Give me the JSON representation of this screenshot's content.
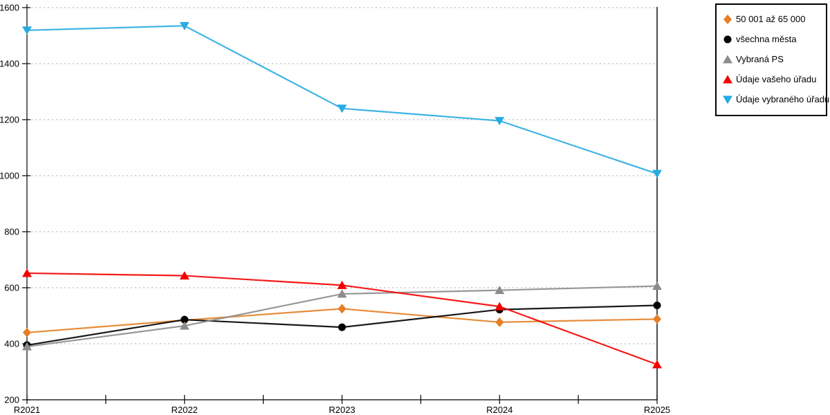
{
  "chart_data": {
    "type": "line",
    "title": "",
    "xlabel": "",
    "ylabel": "",
    "categories": [
      "R2021",
      "R2022",
      "R2023",
      "R2024",
      "R2025"
    ],
    "y_ticks": [
      200,
      400,
      600,
      800,
      1000,
      1200,
      1400,
      1600
    ],
    "ylim": [
      200,
      1620
    ],
    "grid": "horizontal dotted at labeled ticks",
    "legend_position": "outside top-right",
    "series": [
      {
        "name": "50 001 až 65 000",
        "marker": "diamond",
        "color": "#E57E25",
        "values": [
          440,
          484,
          525,
          477,
          488
        ]
      },
      {
        "name": "všechna města",
        "marker": "circle",
        "color": "#000000",
        "values": [
          395,
          486,
          459,
          522,
          537
        ]
      },
      {
        "name": "Vybraná PS",
        "marker": "triangle-up",
        "color": "#8C8C8C",
        "values": [
          390,
          464,
          578,
          591,
          606
        ]
      },
      {
        "name": "Údaje vašeho úřadu",
        "marker": "triangle-up",
        "color": "#F40000",
        "values": [
          652,
          643,
          609,
          533,
          326
        ]
      },
      {
        "name": "Údaje vybraného úřadu",
        "marker": "triangle-down",
        "color": "#29ABE2",
        "values": [
          1519,
          1535,
          1240,
          1196,
          1007
        ]
      }
    ]
  }
}
